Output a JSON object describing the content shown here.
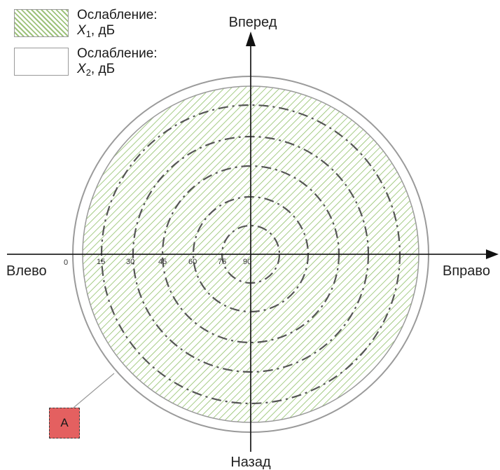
{
  "legend": {
    "x1_title": "Ослабление:",
    "x1_symbol": "X",
    "x1_sub": "1",
    "x1_unit": ", дБ",
    "x2_title": "Ослабление:",
    "x2_symbol": "X",
    "x2_sub": "2",
    "x2_unit": ", дБ",
    "x1_color": "#9dc27a",
    "x2_color": "#ffffff"
  },
  "directions": {
    "forward": "Вперед",
    "back": "Назад",
    "left": "Влево",
    "right": "Вправо"
  },
  "angle_ticks": [
    "0",
    "15",
    "30",
    "45",
    "60",
    "75",
    "90"
  ],
  "marker_a": "A",
  "colors": {
    "outline": "#9a9a9a",
    "dashed_ring": "#555555",
    "axis": "#222222",
    "hatch": "#8fbf68",
    "marker_fill": "#e46060"
  }
}
